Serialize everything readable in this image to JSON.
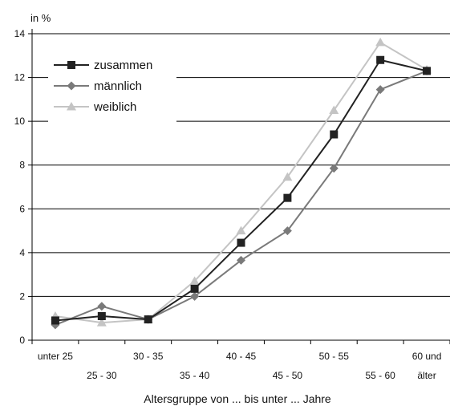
{
  "chart_data": {
    "type": "line",
    "ylabel": "in %",
    "xlabel": "Altersgruppe von ... bis unter ... Jahre",
    "ylim": [
      0,
      14
    ],
    "yticks": [
      0,
      2,
      4,
      6,
      8,
      10,
      12,
      14
    ],
    "grid": true,
    "legend": "top-left",
    "categories": [
      "unter 25",
      "25 - 30",
      "30 - 35",
      "35 - 40",
      "40 - 45",
      "45 - 50",
      "50 - 55",
      "55 - 60",
      "60 und älter"
    ],
    "tick_labels": [
      {
        "lines": [
          "unter 25"
        ],
        "row": 1
      },
      {
        "lines": [
          "25 - 30"
        ],
        "row": 2
      },
      {
        "lines": [
          "30 - 35"
        ],
        "row": 1
      },
      {
        "lines": [
          "35 - 40"
        ],
        "row": 2
      },
      {
        "lines": [
          "40 - 45"
        ],
        "row": 1
      },
      {
        "lines": [
          "45 - 50"
        ],
        "row": 2
      },
      {
        "lines": [
          "50 - 55"
        ],
        "row": 1
      },
      {
        "lines": [
          "55 - 60"
        ],
        "row": 2
      },
      {
        "lines": [
          "60 und",
          "älter"
        ],
        "row": 1
      }
    ],
    "series": [
      {
        "name": "zusammen",
        "color": "#222222",
        "marker": "square",
        "values": [
          0.9,
          1.1,
          0.95,
          2.35,
          4.45,
          6.5,
          9.4,
          12.8,
          12.3
        ]
      },
      {
        "name": "männlich",
        "color": "#7a7a7a",
        "marker": "diamond",
        "values": [
          0.7,
          1.55,
          0.95,
          2.0,
          3.65,
          5.0,
          7.85,
          11.45,
          12.3
        ]
      },
      {
        "name": "weiblich",
        "color": "#c4c4c4",
        "marker": "triangle",
        "values": [
          1.1,
          0.8,
          0.95,
          2.7,
          5.0,
          7.45,
          10.5,
          13.6,
          12.35
        ]
      }
    ]
  }
}
